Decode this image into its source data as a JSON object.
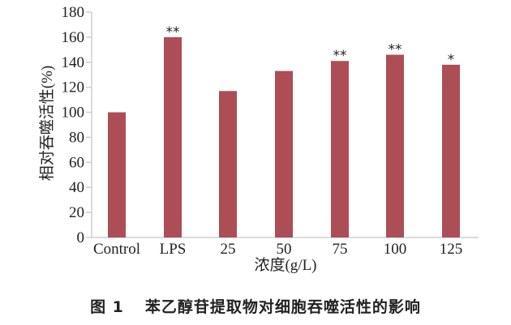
{
  "chart_data": {
    "type": "bar",
    "title": "",
    "xlabel": "浓度(g/L)",
    "ylabel": "相对吞噬活性(%)",
    "categories": [
      "Control",
      "LPS",
      "25",
      "50",
      "75",
      "100",
      "125"
    ],
    "values": [
      100,
      160,
      117,
      133,
      141,
      146,
      138
    ],
    "significance": [
      "",
      "**",
      "",
      "",
      "**",
      "**",
      "*"
    ],
    "ylim": [
      0,
      180
    ],
    "yticks": [
      0,
      20,
      40,
      60,
      80,
      100,
      120,
      140,
      160,
      180
    ],
    "grid": false,
    "legend": null,
    "bar_color": "#ad4d55"
  },
  "caption": {
    "number": "图 1",
    "text": "苯乙醇苷提取物对细胞吞噬活性的影响"
  }
}
